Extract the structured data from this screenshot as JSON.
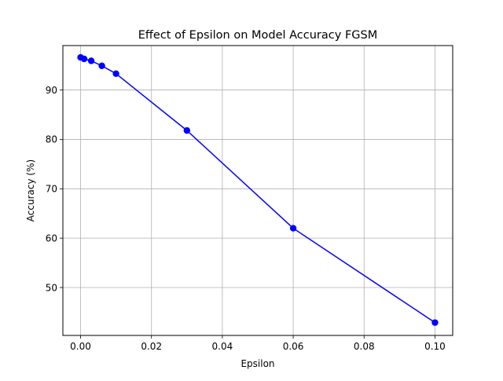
{
  "chart_data": {
    "type": "line",
    "title": "Effect of Epsilon on Model Accuracy FGSM",
    "xlabel": "Epsilon",
    "ylabel": "Accuracy (%)",
    "xlim": [
      -0.005,
      0.105
    ],
    "ylim": [
      40.3,
      99.0
    ],
    "xticks": [
      0.0,
      0.02,
      0.04,
      0.06,
      0.08,
      0.1
    ],
    "xtick_labels": [
      "0.00",
      "0.02",
      "0.04",
      "0.06",
      "0.08",
      "0.10"
    ],
    "yticks": [
      50,
      60,
      70,
      80,
      90
    ],
    "ytick_labels": [
      "50",
      "60",
      "70",
      "80",
      "90"
    ],
    "grid": true,
    "series": [
      {
        "color": "#0000ff",
        "marker": "circle",
        "x": [
          0.0,
          0.001,
          0.003,
          0.006,
          0.01,
          0.03,
          0.06,
          0.1
        ],
        "y": [
          96.6,
          96.3,
          95.9,
          94.9,
          93.3,
          81.8,
          62.0,
          42.9
        ]
      }
    ]
  }
}
